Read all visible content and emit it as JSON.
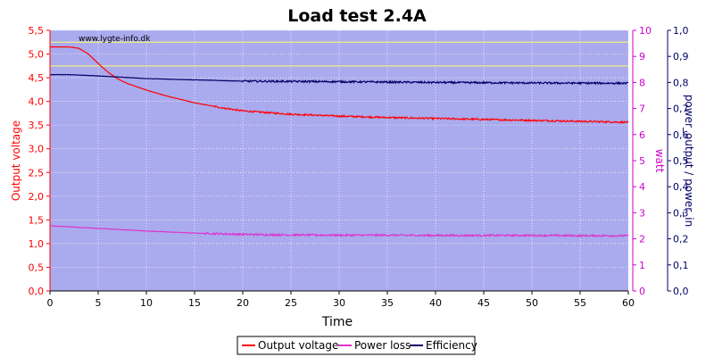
{
  "chart_data": {
    "type": "line",
    "title": "Load test 2.4A",
    "watermark": "www.lygte-info.dk",
    "xlabel": "Time",
    "ylabel_left": "Output voltage",
    "ylabel_right1": "watt",
    "ylabel_right2": "power_output / power_in",
    "xlim": [
      0,
      60
    ],
    "ylim_left": [
      0,
      5.5
    ],
    "ylim_right1": [
      0,
      10
    ],
    "ylim_right2": [
      0,
      1.0
    ],
    "x_ticks": [
      "0",
      "5",
      "10",
      "15",
      "20",
      "25",
      "30",
      "35",
      "40",
      "45",
      "50",
      "55",
      "60"
    ],
    "y_left_ticks": [
      "0,0",
      "0,5",
      "1,0",
      "1,5",
      "2,0",
      "2,5",
      "3,0",
      "3,5",
      "4,0",
      "4,5",
      "5,0",
      "5,5"
    ],
    "y_right1_ticks": [
      "0",
      "1",
      "2",
      "3",
      "4",
      "5",
      "6",
      "7",
      "8",
      "9",
      "10"
    ],
    "y_right2_ticks": [
      "0,0",
      "0,1",
      "0,2",
      "0,3",
      "0,4",
      "0,5",
      "0,6",
      "0,7",
      "0,8",
      "0,9",
      "1,0"
    ],
    "grid": true,
    "legend_position": "bottom",
    "reference_lines_left_axis": [
      5.25,
      4.75
    ],
    "colors": {
      "plot_background": "#aaaaee",
      "output_voltage": "#ff0000",
      "power_loss": "#dd33cc",
      "efficiency": "#000066",
      "reference_lines": "#ffff66",
      "left_axis": "#ff0000",
      "right_axis1": "#cc00cc",
      "right_axis2": "#000066"
    },
    "series": [
      {
        "name": "Output voltage",
        "axis": "left",
        "x": [
          0,
          1,
          2,
          3,
          4,
          5,
          6,
          7,
          8,
          10,
          12,
          15,
          18,
          20,
          25,
          30,
          35,
          40,
          45,
          50,
          55,
          60
        ],
        "values": [
          5.15,
          5.15,
          5.15,
          5.12,
          5.0,
          4.8,
          4.62,
          4.48,
          4.38,
          4.24,
          4.12,
          3.97,
          3.86,
          3.8,
          3.73,
          3.69,
          3.66,
          3.64,
          3.62,
          3.6,
          3.58,
          3.56
        ]
      },
      {
        "name": "Power loss",
        "axis": "right1",
        "x": [
          0,
          5,
          10,
          15,
          20,
          25,
          30,
          35,
          40,
          45,
          50,
          55,
          60
        ],
        "values": [
          2.5,
          2.4,
          2.3,
          2.22,
          2.17,
          2.15,
          2.14,
          2.14,
          2.13,
          2.13,
          2.13,
          2.12,
          2.12
        ]
      },
      {
        "name": "Efficiency",
        "axis": "right2",
        "x": [
          0,
          2,
          5,
          10,
          15,
          20,
          30,
          40,
          50,
          60
        ],
        "values": [
          0.83,
          0.83,
          0.825,
          0.815,
          0.81,
          0.805,
          0.803,
          0.8,
          0.798,
          0.797
        ]
      }
    ]
  }
}
